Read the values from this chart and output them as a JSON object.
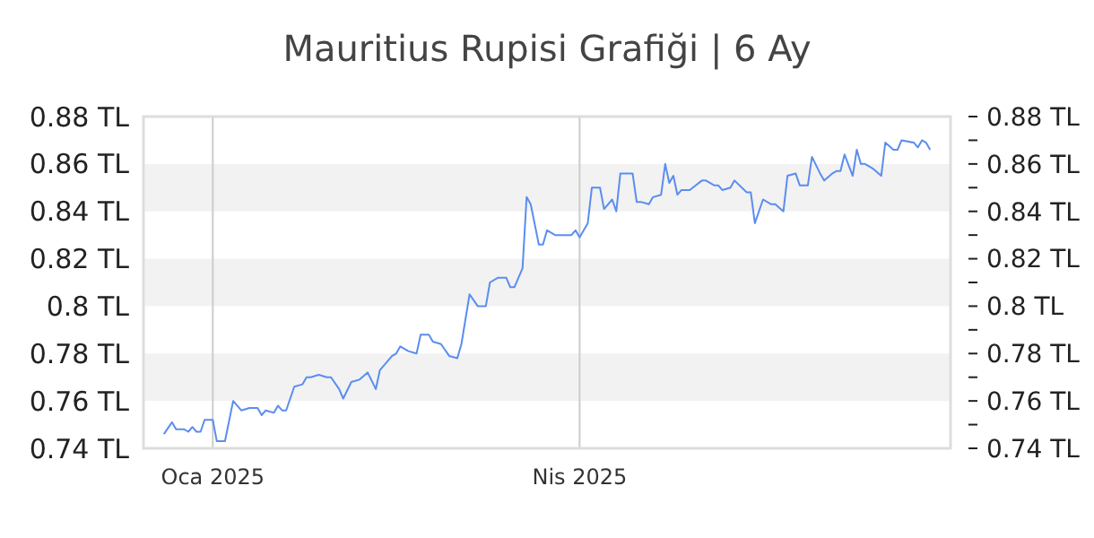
{
  "chart_data": {
    "type": "line",
    "title": "Mauritius Rupisi Grafiği | 6 Ay",
    "x": [
      "2024-12-20",
      "2024-12-22",
      "2024-12-23",
      "2024-12-25",
      "2024-12-26",
      "2024-12-27",
      "2024-12-28",
      "2024-12-29",
      "2024-12-30",
      "2025-01-01",
      "2025-01-02",
      "2025-01-04",
      "2025-01-06",
      "2025-01-08",
      "2025-01-10",
      "2025-01-12",
      "2025-01-13",
      "2025-01-14",
      "2025-01-16",
      "2025-01-17",
      "2025-01-18",
      "2025-01-19",
      "2025-01-21",
      "2025-01-23",
      "2025-01-24",
      "2025-01-25",
      "2025-01-27",
      "2025-01-29",
      "2025-01-30",
      "2025-02-01",
      "2025-02-02",
      "2025-02-04",
      "2025-02-06",
      "2025-02-08",
      "2025-02-10",
      "2025-02-11",
      "2025-02-14",
      "2025-02-15",
      "2025-02-16",
      "2025-02-18",
      "2025-02-20",
      "2025-02-21",
      "2025-02-23",
      "2025-02-24",
      "2025-02-26",
      "2025-02-28",
      "2025-03-02",
      "2025-03-03",
      "2025-03-05",
      "2025-03-07",
      "2025-03-09",
      "2025-03-10",
      "2025-03-12",
      "2025-03-14",
      "2025-03-15",
      "2025-03-16",
      "2025-03-18",
      "2025-03-19",
      "2025-03-20",
      "2025-03-22",
      "2025-03-23",
      "2025-03-24",
      "2025-03-26",
      "2025-03-28",
      "2025-03-30",
      "2025-03-31",
      "2025-04-01",
      "2025-04-03",
      "2025-04-04",
      "2025-04-06",
      "2025-04-07",
      "2025-04-09",
      "2025-04-10",
      "2025-04-11",
      "2025-04-14",
      "2025-04-15",
      "2025-04-16",
      "2025-04-18",
      "2025-04-19",
      "2025-04-21",
      "2025-04-22",
      "2025-04-23",
      "2025-04-24",
      "2025-04-25",
      "2025-04-26",
      "2025-04-28",
      "2025-05-01",
      "2025-05-02",
      "2025-05-04",
      "2025-05-05",
      "2025-05-06",
      "2025-05-08",
      "2025-05-09",
      "2025-05-12",
      "2025-05-13",
      "2025-05-14",
      "2025-05-16",
      "2025-05-18",
      "2025-05-19",
      "2025-05-21",
      "2025-05-22",
      "2025-05-24",
      "2025-05-25",
      "2025-05-27",
      "2025-05-28",
      "2025-05-30",
      "2025-05-31",
      "2025-06-02",
      "2025-06-03",
      "2025-06-04",
      "2025-06-05",
      "2025-06-07",
      "2025-06-08",
      "2025-06-09",
      "2025-06-10",
      "2025-06-12",
      "2025-06-14",
      "2025-06-15",
      "2025-06-17",
      "2025-06-18",
      "2025-06-19",
      "2025-06-22",
      "2025-06-23",
      "2025-06-24",
      "2025-06-25",
      "2025-06-26"
    ],
    "series": [
      {
        "color": "#5b8def",
        "values": [
          0.746,
          0.751,
          0.748,
          0.748,
          0.747,
          0.749,
          0.747,
          0.747,
          0.752,
          0.752,
          0.743,
          0.743,
          0.76,
          0.756,
          0.757,
          0.757,
          0.754,
          0.756,
          0.755,
          0.758,
          0.756,
          0.756,
          0.766,
          0.767,
          0.77,
          0.77,
          0.771,
          0.77,
          0.77,
          0.765,
          0.761,
          0.768,
          0.769,
          0.772,
          0.765,
          0.773,
          0.779,
          0.78,
          0.783,
          0.781,
          0.78,
          0.788,
          0.788,
          0.785,
          0.784,
          0.779,
          0.778,
          0.784,
          0.805,
          0.8,
          0.8,
          0.81,
          0.812,
          0.812,
          0.808,
          0.808,
          0.816,
          0.846,
          0.843,
          0.826,
          0.826,
          0.832,
          0.83,
          0.83,
          0.83,
          0.832,
          0.829,
          0.835,
          0.85,
          0.85,
          0.841,
          0.845,
          0.84,
          0.856,
          0.856,
          0.844,
          0.844,
          0.843,
          0.846,
          0.847,
          0.86,
          0.852,
          0.855,
          0.847,
          0.849,
          0.849,
          0.853,
          0.853,
          0.851,
          0.851,
          0.849,
          0.85,
          0.853,
          0.848,
          0.848,
          0.835,
          0.845,
          0.843,
          0.843,
          0.84,
          0.855,
          0.856,
          0.851,
          0.851,
          0.863,
          0.856,
          0.853,
          0.856,
          0.857,
          0.857,
          0.864,
          0.855,
          0.866,
          0.86,
          0.86,
          0.858,
          0.855,
          0.869,
          0.866,
          0.866,
          0.87,
          0.869,
          0.867,
          0.87,
          0.869,
          0.866
        ]
      }
    ],
    "xlim": [
      "2024-12-15",
      "2025-07-01"
    ],
    "xticks": [
      {
        "value": "2025-01-01",
        "label": "Oca 2025"
      },
      {
        "value": "2025-04-01",
        "label": "Nis 2025"
      }
    ],
    "ylim": [
      0.74,
      0.88
    ],
    "yticks": [
      {
        "value": 0.74,
        "label": "0.74 TL"
      },
      {
        "value": 0.76,
        "label": "0.76 TL"
      },
      {
        "value": 0.78,
        "label": "0.78 TL"
      },
      {
        "value": 0.8,
        "label": "0.8 TL"
      },
      {
        "value": 0.82,
        "label": "0.82 TL"
      },
      {
        "value": 0.84,
        "label": "0.84 TL"
      },
      {
        "value": 0.86,
        "label": "0.86 TL"
      },
      {
        "value": 0.88,
        "label": "0.88 TL"
      }
    ],
    "y2lim": [
      0.74,
      0.88
    ],
    "y2ticks": [
      {
        "value": 0.74,
        "label": "0.74 TL"
      },
      {
        "value": 0.75,
        "label": null
      },
      {
        "value": 0.76,
        "label": "0.76 TL"
      },
      {
        "value": 0.77,
        "label": null
      },
      {
        "value": 0.78,
        "label": "0.78 TL"
      },
      {
        "value": 0.79,
        "label": null
      },
      {
        "value": 0.8,
        "label": "0.8 TL"
      },
      {
        "value": 0.81,
        "label": null
      },
      {
        "value": 0.82,
        "label": "0.82 TL"
      },
      {
        "value": 0.83,
        "label": null
      },
      {
        "value": 0.84,
        "label": "0.84 TL"
      },
      {
        "value": 0.85,
        "label": null
      },
      {
        "value": 0.86,
        "label": "0.86 TL"
      },
      {
        "value": 0.87,
        "label": null
      },
      {
        "value": 0.88,
        "label": "0.88 TL"
      }
    ],
    "grid": true
  }
}
